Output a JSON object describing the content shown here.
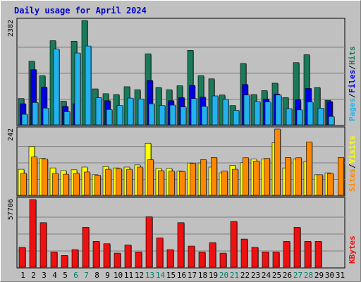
{
  "title": "Daily usage for April 2024",
  "colors": {
    "background": "#c0c0c0",
    "plot_background": "#c0c0c0",
    "title": "#0000cc",
    "hits": "#1a7a5a",
    "files": "#0000e0",
    "pages": "#22b2ee",
    "visits": "#ffff00",
    "sites": "#ff8800",
    "kbytes": "#ee1111",
    "weekend_label": "#00806a",
    "weekday_label": "#000000"
  },
  "chart_data": [
    {
      "type": "bar",
      "panel": "top",
      "y_max_label": "2382",
      "ylim": [
        0,
        2382
      ],
      "grid": true,
      "legend": [
        {
          "text": "Pages",
          "color_key": "pages"
        },
        {
          "text": "Files",
          "color_key": "files"
        },
        {
          "text": "Hits",
          "color_key": "hits"
        }
      ],
      "categories": [
        "1",
        "2",
        "3",
        "4",
        "5",
        "6",
        "7",
        "8",
        "9",
        "10",
        "11",
        "12",
        "13",
        "14",
        "15",
        "16",
        "17",
        "18",
        "19",
        "20",
        "21",
        "22",
        "23",
        "24",
        "25",
        "26",
        "27",
        "28",
        "29",
        "30",
        "31"
      ],
      "weekend_days": [
        6,
        7,
        13,
        14,
        20,
        21,
        27,
        28
      ],
      "series": [
        {
          "name": "Hits",
          "values": [
            600,
            1450,
            1120,
            1920,
            540,
            1910,
            2382,
            820,
            710,
            690,
            870,
            800,
            1620,
            850,
            800,
            890,
            1700,
            1120,
            1050,
            680,
            440,
            1400,
            690,
            780,
            950,
            620,
            1420,
            1600,
            850,
            560,
            0
          ]
        },
        {
          "name": "Files",
          "values": [
            480,
            1260,
            860,
            0,
            420,
            480,
            0,
            0,
            550,
            0,
            0,
            0,
            1010,
            0,
            550,
            620,
            900,
            630,
            0,
            0,
            0,
            920,
            0,
            590,
            700,
            0,
            570,
            830,
            0,
            530,
            0
          ]
        },
        {
          "name": "Pages",
          "values": [
            240,
            510,
            380,
            1730,
            300,
            1640,
            1800,
            620,
            350,
            440,
            610,
            590,
            480,
            440,
            450,
            410,
            600,
            420,
            660,
            580,
            330,
            680,
            530,
            520,
            680,
            370,
            340,
            520,
            380,
            190,
            0
          ]
        }
      ]
    },
    {
      "type": "bar",
      "panel": "middle",
      "y_max_label": "242",
      "ylim": [
        0,
        242
      ],
      "grid": true,
      "legend": [
        {
          "text": "Sites",
          "color_key": "sites"
        },
        {
          "text": "Visits",
          "color_key": "visits"
        }
      ],
      "categories": [
        "1",
        "2",
        "3",
        "4",
        "5",
        "6",
        "7",
        "8",
        "9",
        "10",
        "11",
        "12",
        "13",
        "14",
        "15",
        "16",
        "17",
        "18",
        "19",
        "20",
        "21",
        "22",
        "23",
        "24",
        "25",
        "26",
        "27",
        "28",
        "29",
        "30",
        "31"
      ],
      "series": [
        {
          "name": "Visits",
          "values": [
            95,
            178,
            135,
            100,
            90,
            93,
            103,
            75,
            105,
            100,
            103,
            111,
            190,
            98,
            98,
            88,
            118,
            118,
            103,
            82,
            109,
            119,
            132,
            132,
            192,
            100,
            132,
            124,
            75,
            82,
            0
          ]
        },
        {
          "name": "Sites",
          "values": [
            80,
            140,
            132,
            80,
            77,
            80,
            85,
            73,
            95,
            97,
            95,
            103,
            130,
            90,
            88,
            87,
            117,
            130,
            138,
            88,
            95,
            137,
            125,
            135,
            242,
            138,
            137,
            195,
            75,
            80,
            138
          ]
        }
      ]
    },
    {
      "type": "bar",
      "panel": "bottom",
      "y_max_label": "57706",
      "ylim": [
        0,
        57706
      ],
      "grid": true,
      "legend": [
        {
          "text": "KBytes",
          "color_key": "kbytes"
        }
      ],
      "categories": [
        "1",
        "2",
        "3",
        "4",
        "5",
        "6",
        "7",
        "8",
        "9",
        "10",
        "11",
        "12",
        "13",
        "14",
        "15",
        "16",
        "17",
        "18",
        "19",
        "20",
        "21",
        "22",
        "23",
        "24",
        "25",
        "26",
        "27",
        "28",
        "29",
        "30",
        "31"
      ],
      "series": [
        {
          "name": "KBytes",
          "values": [
            17000,
            57706,
            38000,
            13000,
            10000,
            15000,
            34000,
            22000,
            20000,
            12000,
            19000,
            13000,
            43000,
            25000,
            15000,
            38000,
            18000,
            13000,
            21000,
            12000,
            39000,
            24000,
            17000,
            13000,
            13000,
            22000,
            34000,
            22000,
            22000,
            0,
            0
          ]
        }
      ]
    }
  ]
}
